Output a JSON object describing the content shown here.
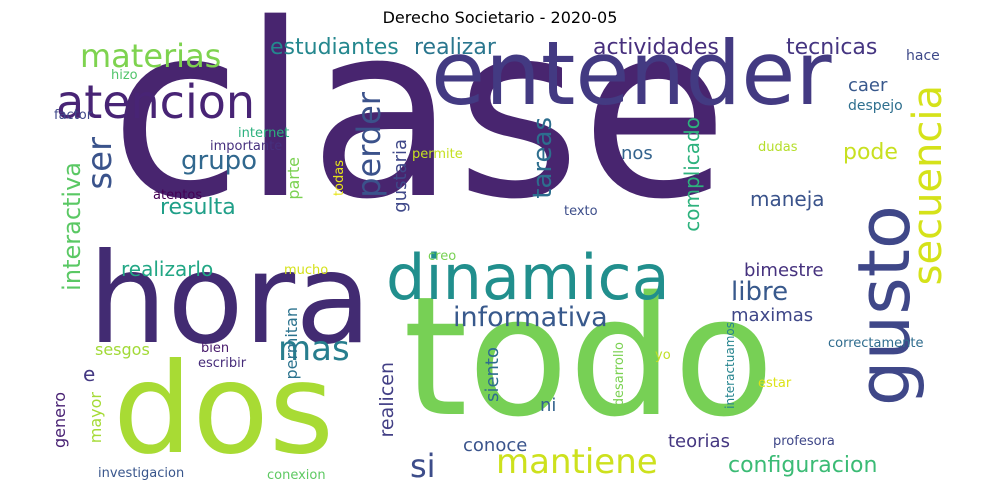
{
  "title": "Derecho Societario - 2020-05",
  "words": [
    {
      "text": "clase",
      "color": "#48256f",
      "vertical": false
    },
    {
      "text": "todo",
      "color": "#77d055",
      "vertical": false
    },
    {
      "text": "hora",
      "color": "#422b72",
      "vertical": false
    },
    {
      "text": "dos",
      "color": "#a8db34",
      "vertical": false
    },
    {
      "text": "entender",
      "color": "#433a82",
      "vertical": false
    },
    {
      "text": "gusto",
      "color": "#3f4788",
      "vertical": true
    },
    {
      "text": "dinamica",
      "color": "#218f8d",
      "vertical": false
    },
    {
      "text": "atencion",
      "color": "#482475",
      "vertical": false
    },
    {
      "text": "secuencia",
      "color": "#d5e21a",
      "vertical": true
    },
    {
      "text": "mantiene",
      "color": "#cde11d",
      "vertical": false
    },
    {
      "text": "materias",
      "color": "#7ed34f",
      "vertical": false
    },
    {
      "text": "ser",
      "color": "#3a538b",
      "vertical": true
    },
    {
      "text": "mas",
      "color": "#277e8e",
      "vertical": false
    },
    {
      "text": "perder",
      "color": "#3b528b",
      "vertical": true
    },
    {
      "text": "interactiva",
      "color": "#5ac864",
      "vertical": true
    },
    {
      "text": "tareas",
      "color": "#2d6e8e",
      "vertical": true
    },
    {
      "text": "informativa",
      "color": "#38598c",
      "vertical": false
    },
    {
      "text": "si",
      "color": "#3d4d8a",
      "vertical": false
    },
    {
      "text": "grupo",
      "color": "#31688e",
      "vertical": false
    },
    {
      "text": "libre",
      "color": "#38598c",
      "vertical": false
    },
    {
      "text": "estudiantes",
      "color": "#24878e",
      "vertical": false
    },
    {
      "text": "realizar",
      "color": "#2a768e",
      "vertical": false
    },
    {
      "text": "actividades",
      "color": "#472f7d",
      "vertical": false
    },
    {
      "text": "tecnicas",
      "color": "#453581",
      "vertical": false
    },
    {
      "text": "resulta",
      "color": "#1f9f88",
      "vertical": false
    },
    {
      "text": "pode",
      "color": "#c8e020",
      "vertical": false
    },
    {
      "text": "configuracion",
      "color": "#3bbb75",
      "vertical": false
    },
    {
      "text": "complicado",
      "color": "#2db27d",
      "vertical": true
    },
    {
      "text": "maneja",
      "color": "#3a538b",
      "vertical": false
    },
    {
      "text": "e",
      "color": "#443983",
      "vertical": false
    },
    {
      "text": "realizarlo",
      "color": "#22a785",
      "vertical": false
    },
    {
      "text": "bimestre",
      "color": "#46327e",
      "vertical": false
    },
    {
      "text": "maximas",
      "color": "#3f4788",
      "vertical": false
    },
    {
      "text": "realicen",
      "color": "#423f85",
      "vertical": true
    },
    {
      "text": "conoce",
      "color": "#3a548c",
      "vertical": false
    },
    {
      "text": "teorias",
      "color": "#453781",
      "vertical": false
    },
    {
      "text": "gustaria",
      "color": "#3f4889",
      "vertical": true
    },
    {
      "text": "nos",
      "color": "#33638d",
      "vertical": false
    },
    {
      "text": "caer",
      "color": "#38588c",
      "vertical": false
    },
    {
      "text": "siento",
      "color": "#2e6d8e",
      "vertical": true
    },
    {
      "text": "ni",
      "color": "#33628d",
      "vertical": false
    },
    {
      "text": "genero",
      "color": "#482173",
      "vertical": true
    },
    {
      "text": "mayor",
      "color": "#a5db36",
      "vertical": true
    },
    {
      "text": "parte",
      "color": "#7ad151",
      "vertical": true
    },
    {
      "text": "permitan",
      "color": "#2c738e",
      "vertical": true
    },
    {
      "text": "sesgos",
      "color": "#a2da37",
      "vertical": false
    },
    {
      "text": "hace",
      "color": "#3e4989",
      "vertical": false
    },
    {
      "text": "despejo",
      "color": "#2e6f8e",
      "vertical": false
    },
    {
      "text": "hizo",
      "color": "#50c46a",
      "vertical": false
    },
    {
      "text": "factor",
      "color": "#3f4889",
      "vertical": false
    },
    {
      "text": "internet",
      "color": "#2cb17e",
      "vertical": false
    },
    {
      "text": "importante",
      "color": "#46307e",
      "vertical": false
    },
    {
      "text": "atentos",
      "color": "#440154",
      "vertical": false
    },
    {
      "text": "todas",
      "color": "#e7e419",
      "vertical": true
    },
    {
      "text": "permite",
      "color": "#c5e021",
      "vertical": false
    },
    {
      "text": "dudas",
      "color": "#b5de2b",
      "vertical": false
    },
    {
      "text": "texto",
      "color": "#3d4e8a",
      "vertical": false
    },
    {
      "text": "mucho",
      "color": "#d5e21a",
      "vertical": false
    },
    {
      "text": "creo",
      "color": "#77d153",
      "vertical": false
    },
    {
      "text": "bien",
      "color": "#481a6c",
      "vertical": false
    },
    {
      "text": "escribir",
      "color": "#472c7a",
      "vertical": false
    },
    {
      "text": "desarrollo",
      "color": "#7ad151",
      "vertical": true
    },
    {
      "text": "yo",
      "color": "#c0df25",
      "vertical": false
    },
    {
      "text": "interactuamos",
      "color": "#25848e",
      "vertical": true
    },
    {
      "text": "correctamente",
      "color": "#2f6c8e",
      "vertical": false
    },
    {
      "text": "estar",
      "color": "#dde318",
      "vertical": false
    },
    {
      "text": "profesora",
      "color": "#3f4788",
      "vertical": false
    },
    {
      "text": "investigacion",
      "color": "#39568c",
      "vertical": false
    },
    {
      "text": "conexion",
      "color": "#5ec962",
      "vertical": false
    }
  ]
}
